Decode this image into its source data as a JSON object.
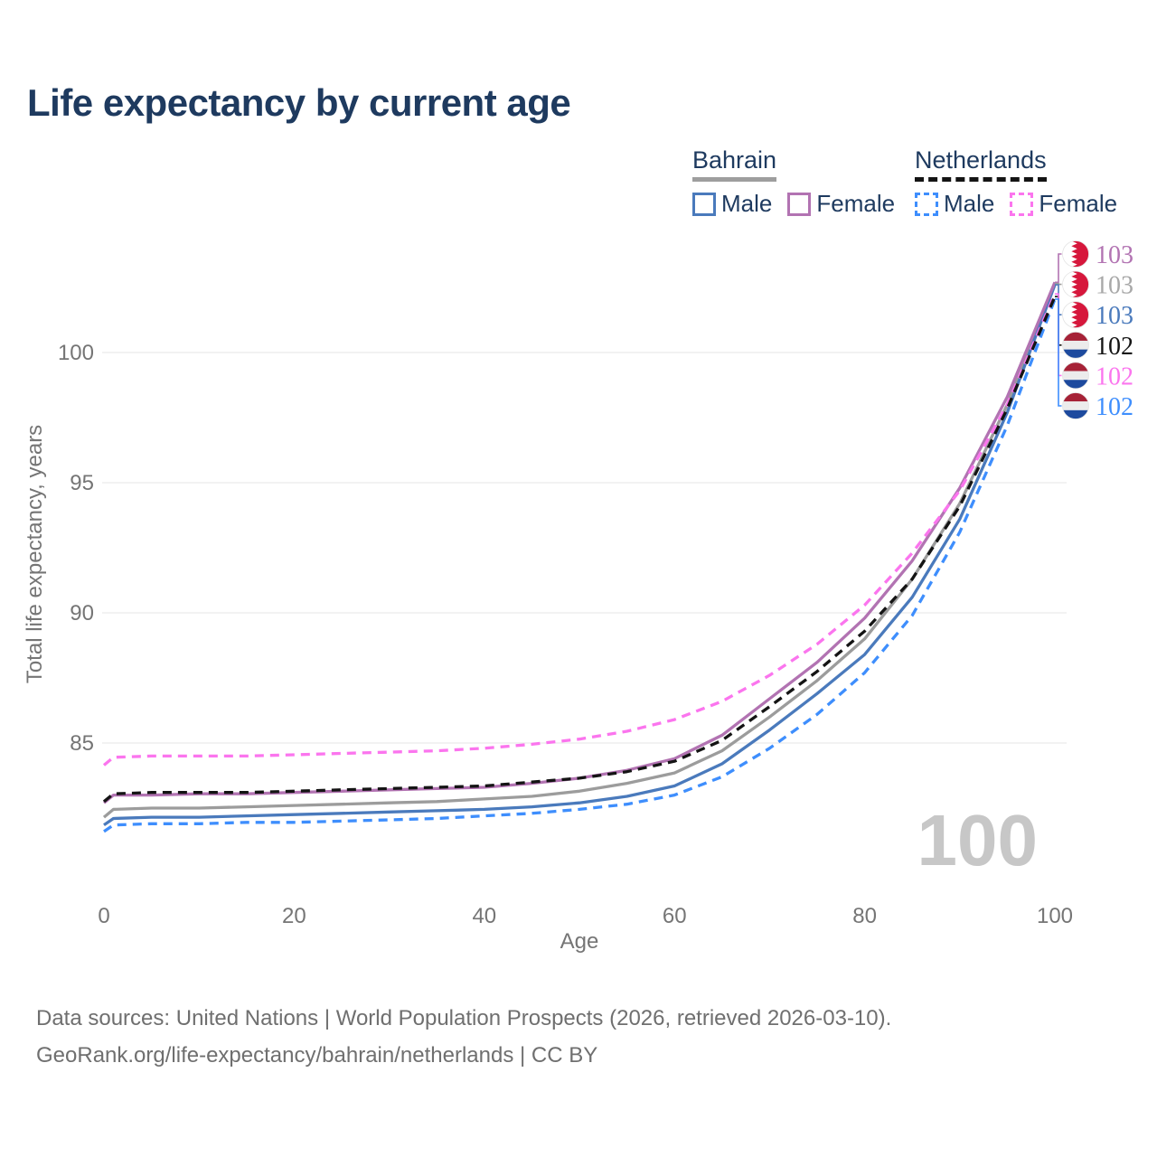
{
  "header": {
    "title": "Life expectancy by current age"
  },
  "legend": {
    "groups": [
      {
        "country": "Bahrain",
        "line_style": "solid",
        "underline_color": "#9e9e9e",
        "items": [
          {
            "label": "Male",
            "color": "#4a7abc",
            "dashed": false
          },
          {
            "label": "Female",
            "color": "#b273b2",
            "dashed": false
          }
        ]
      },
      {
        "country": "Netherlands",
        "line_style": "dashed",
        "underline_color": "#141414",
        "items": [
          {
            "label": "Male",
            "color": "#3e8efd",
            "dashed": true
          },
          {
            "label": "Female",
            "color": "#fb75ee",
            "dashed": true
          }
        ]
      }
    ]
  },
  "chart_data": {
    "type": "line",
    "title": "Life expectancy by current age",
    "xlabel": "Age",
    "ylabel": "Total life expectancy, years",
    "xlim": [
      0,
      100
    ],
    "ylim": [
      81,
      103.5
    ],
    "x_ticks": [
      0,
      20,
      40,
      60,
      80,
      100
    ],
    "y_ticks": [
      85,
      90,
      95,
      100
    ],
    "grid": "horizontal-only",
    "x": [
      0,
      1,
      5,
      10,
      15,
      20,
      25,
      30,
      35,
      40,
      45,
      50,
      55,
      60,
      65,
      70,
      75,
      80,
      85,
      90,
      95,
      100
    ],
    "series": [
      {
        "name": "Bahrain Female",
        "country": "Bahrain",
        "sex": "female",
        "color": "#b273b2",
        "dashed": false,
        "values": [
          82.7,
          83.0,
          83.0,
          83.05,
          83.05,
          83.1,
          83.15,
          83.2,
          83.25,
          83.3,
          83.45,
          83.65,
          83.95,
          84.4,
          85.3,
          86.7,
          88.1,
          89.8,
          92.0,
          94.8,
          98.3,
          102.7
        ]
      },
      {
        "name": "Bahrain",
        "country": "Bahrain",
        "sex": "both",
        "color": "#9c9c9c",
        "dashed": false,
        "values": [
          82.15,
          82.45,
          82.5,
          82.5,
          82.55,
          82.6,
          82.65,
          82.7,
          82.75,
          82.85,
          82.95,
          83.15,
          83.45,
          83.85,
          84.7,
          86.0,
          87.4,
          89.0,
          91.3,
          94.2,
          98.0,
          102.65
        ]
      },
      {
        "name": "Bahrain Male",
        "country": "Bahrain",
        "sex": "male",
        "color": "#4a7abc",
        "dashed": false,
        "values": [
          81.85,
          82.1,
          82.15,
          82.15,
          82.2,
          82.25,
          82.3,
          82.35,
          82.4,
          82.45,
          82.55,
          82.7,
          82.95,
          83.35,
          84.2,
          85.5,
          86.9,
          88.4,
          90.6,
          93.6,
          97.7,
          102.6
        ]
      },
      {
        "name": "Netherlands",
        "country": "Netherlands",
        "sex": "both",
        "color": "#141414",
        "dashed": true,
        "values": [
          82.75,
          83.05,
          83.1,
          83.1,
          83.1,
          83.15,
          83.2,
          83.25,
          83.3,
          83.35,
          83.5,
          83.65,
          83.9,
          84.3,
          85.1,
          86.4,
          87.75,
          89.3,
          91.3,
          94.1,
          97.85,
          102.15
        ]
      },
      {
        "name": "Netherlands Female",
        "country": "Netherlands",
        "sex": "female",
        "color": "#fb75ee",
        "dashed": true,
        "values": [
          84.15,
          84.45,
          84.5,
          84.5,
          84.5,
          84.55,
          84.6,
          84.65,
          84.7,
          84.8,
          84.95,
          85.15,
          85.45,
          85.9,
          86.6,
          87.6,
          88.8,
          90.3,
          92.3,
          94.7,
          98.0,
          102.25
        ]
      },
      {
        "name": "Netherlands Male",
        "country": "Netherlands",
        "sex": "male",
        "color": "#3e8efd",
        "dashed": true,
        "values": [
          81.6,
          81.85,
          81.9,
          81.9,
          81.95,
          81.95,
          82.0,
          82.05,
          82.1,
          82.2,
          82.3,
          82.45,
          82.65,
          83.0,
          83.7,
          84.8,
          86.1,
          87.7,
          89.9,
          93.1,
          97.2,
          102.05
        ]
      }
    ],
    "end_labels": [
      {
        "series": 0,
        "text": "103",
        "color": "#b273b2",
        "flag": "bahrain"
      },
      {
        "series": 1,
        "text": "103",
        "color": "#a8a8a8",
        "flag": "bahrain"
      },
      {
        "series": 2,
        "text": "103",
        "color": "#4a7abc",
        "flag": "bahrain"
      },
      {
        "series": 3,
        "text": "102",
        "color": "#141414",
        "flag": "netherlands"
      },
      {
        "series": 4,
        "text": "102",
        "color": "#fb75ee",
        "flag": "netherlands"
      },
      {
        "series": 5,
        "text": "102",
        "color": "#3e8efd",
        "flag": "netherlands"
      }
    ],
    "legend_position": "top-right",
    "annotations": {
      "age_counter_watermark": "100"
    },
    "flag_colors": {
      "bahrain_red": "#d6173c",
      "netherlands_red": "#a62237",
      "netherlands_white": "#ececec",
      "netherlands_blue": "#1d4a9e"
    }
  },
  "footer": {
    "line1": "Data sources: United Nations | World Population Prospects (2026, retrieved 2026-03-10).",
    "line2": "GeoRank.org/life-expectancy/bahrain/netherlands | CC BY"
  }
}
